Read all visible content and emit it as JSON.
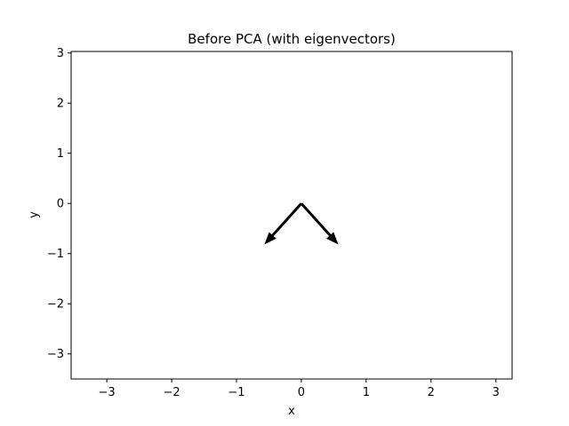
{
  "chart_data": {
    "type": "quiver",
    "title": "Before PCA (with eigenvectors)",
    "xlabel": "x",
    "ylabel": "y",
    "xlim": [
      -3.55,
      3.25
    ],
    "ylim": [
      -3.5,
      3.03
    ],
    "xticks": [
      -3,
      -2,
      -1,
      0,
      1,
      2,
      3
    ],
    "yticks": [
      -3,
      -2,
      -1,
      0,
      1,
      2,
      3
    ],
    "grid": false,
    "colors": {
      "arrow": "#000000",
      "axes": "#000000",
      "background": "#ffffff"
    },
    "arrows": [
      {
        "x0": 0,
        "y0": 0,
        "dx": -0.57,
        "dy": -0.82
      },
      {
        "x0": 0,
        "y0": 0,
        "dx": 0.57,
        "dy": -0.82
      }
    ]
  }
}
